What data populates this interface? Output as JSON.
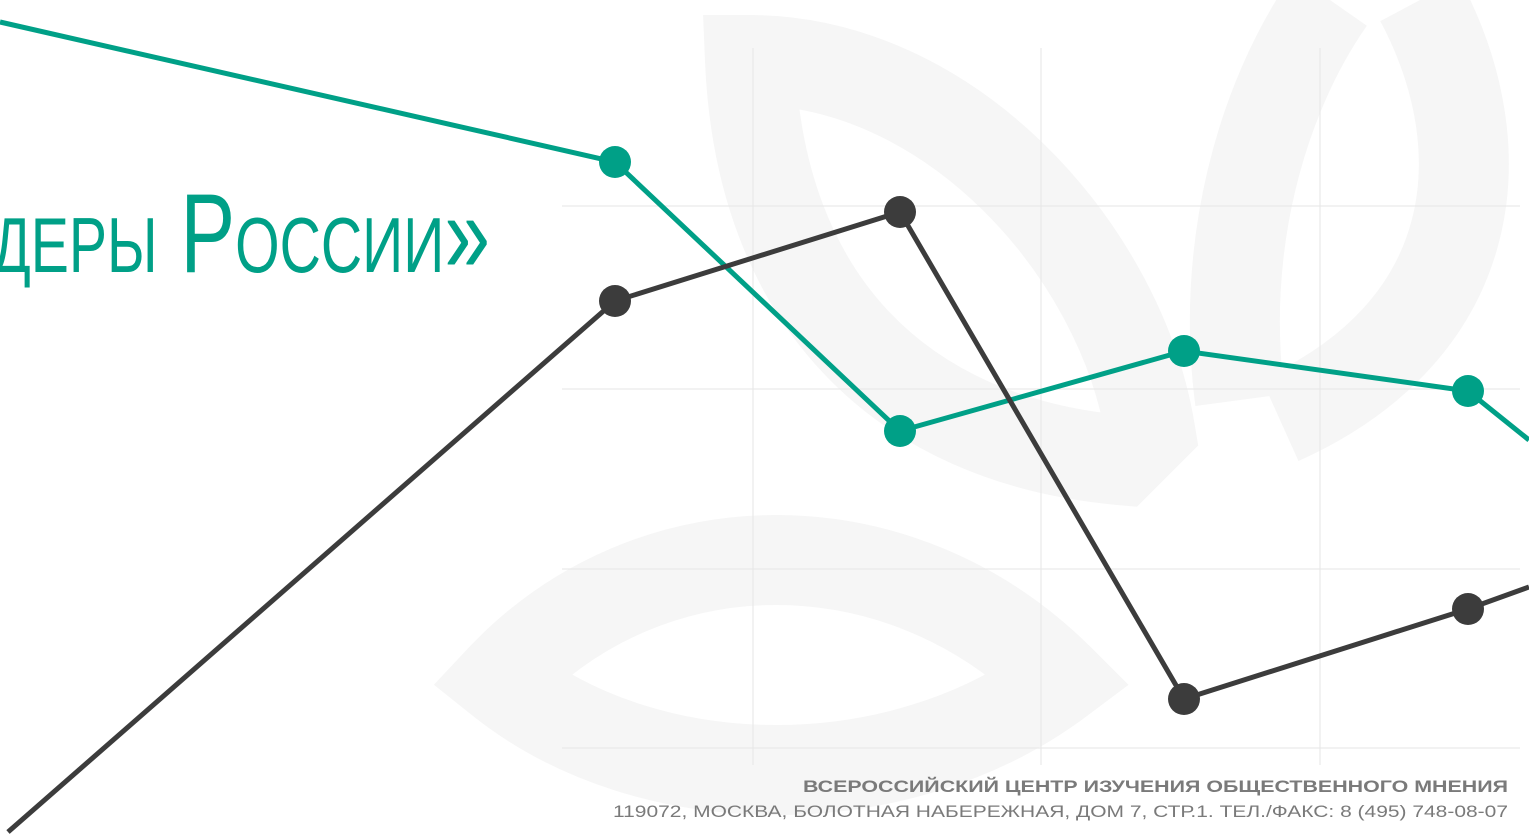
{
  "title": "деры России»",
  "footer": {
    "organization": "ВСЕРОССИЙСКИЙ ЦЕНТР ИЗУЧЕНИЯ ОБЩЕСТВЕННОГО МНЕНИЯ",
    "address": "119072, МОСКВА, БОЛОТНАЯ НАБЕРЕЖНАЯ, ДОМ 7, СТР.1. ТЕЛ./ФАКС: 8 (495) 748-08-07"
  }
}
